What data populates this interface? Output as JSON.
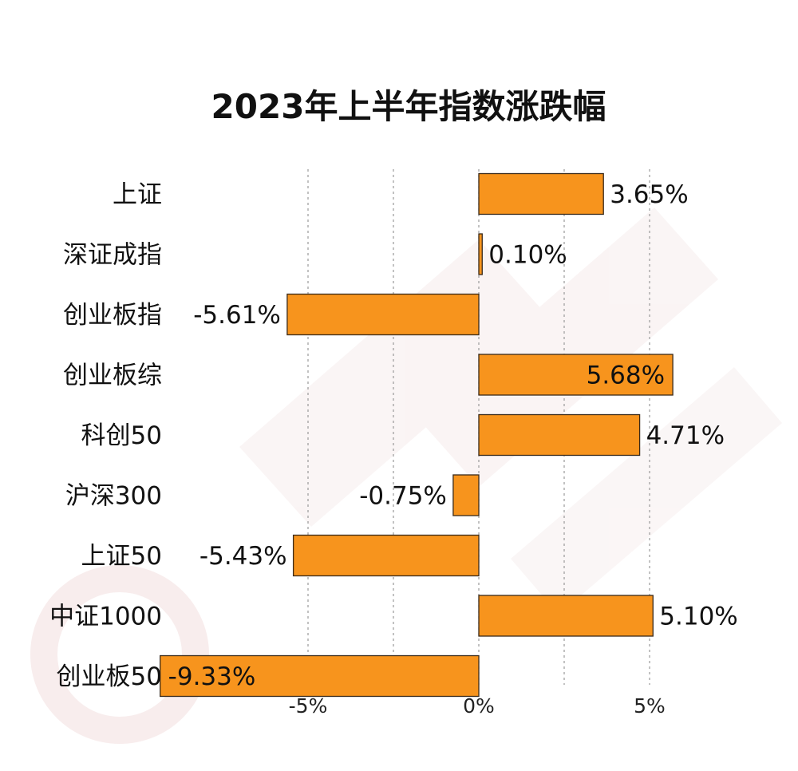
{
  "chart_data": {
    "type": "bar",
    "orientation": "horizontal",
    "title": "2023年上半年指数涨跌幅",
    "xlabel": "",
    "ylabel": "",
    "categories": [
      "上证",
      "深证成指",
      "创业板指",
      "创业板综",
      "科创50",
      "沪深300",
      "上证50",
      "中证1000",
      "创业板50"
    ],
    "values": [
      3.65,
      0.1,
      -5.61,
      5.68,
      4.71,
      -0.75,
      -5.43,
      5.1,
      -9.33
    ],
    "value_labels": [
      "3.65%",
      "0.10%",
      "-5.61%",
      "5.68%",
      "4.71%",
      "-0.75%",
      "-5.43%",
      "5.10%",
      "-9.33%"
    ],
    "xlim": [
      -9.33,
      5.68
    ],
    "x_ticks": [
      {
        "value": -5,
        "label": "-5%"
      },
      {
        "value": 0,
        "label": "0%"
      },
      {
        "value": 5,
        "label": "5%"
      }
    ],
    "grid_values": [
      -5,
      -2.5,
      0,
      2.5,
      5
    ],
    "grid": true,
    "legend": "none",
    "colors": {
      "bar": "#f7941d",
      "bar_outline": "#3a2a1a",
      "grid": "#9a9a9a",
      "text": "#111111",
      "watermark": "#f4e8e8"
    }
  }
}
